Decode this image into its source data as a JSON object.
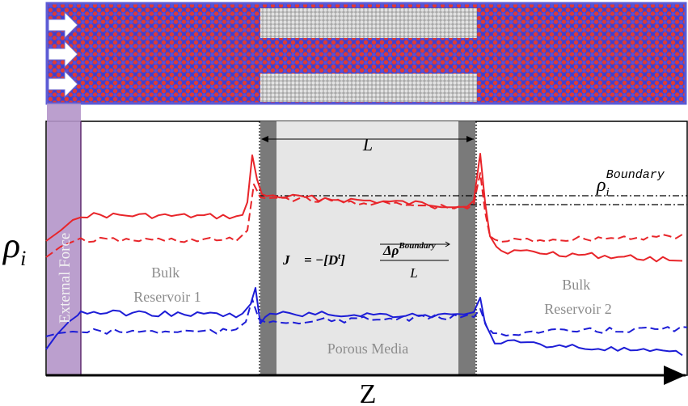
{
  "colors": {
    "red": "#e8252a",
    "blue": "#1d1dd6",
    "simulation_border": "#5b5bd6",
    "external_force_band": "#b495c9",
    "porous_fill": "#e6e6e6",
    "porous_wall": "#7a7a7a",
    "text_gray": "#8c8c8c"
  },
  "icons": {
    "flow_arrow": "white-right-arrow-icon",
    "span_arrow": "double-headed-arrow-icon",
    "axis_arrow": "right-arrow-icon"
  },
  "simulation_snapshot": {
    "flow_arrow_count": 3,
    "particle_species": [
      "red",
      "blue"
    ],
    "porous_slab_count": 2
  },
  "labels": {
    "y_axis": "ρ",
    "y_axis_sub": "i",
    "x_axis": "Z",
    "external_force": "External Force",
    "bulk_reservoir_1_line1": "Bulk",
    "bulk_reservoir_1_line2": "Reservoir 1",
    "bulk_reservoir_2_line1": "Bulk",
    "bulk_reservoir_2_line2": "Reservoir 2",
    "porous_media": "Porous Media",
    "length": "L",
    "boundary_rho": "ρ",
    "boundary_rho_sub": "i",
    "boundary_rho_sup": "Boundary",
    "flux_lhs": "J⃗ = −[",
    "flux_D": "D",
    "flux_D_sup": "t",
    "flux_rbracket": "]",
    "flux_num": "Δρ",
    "flux_num_sup": "Boundary",
    "flux_den": "L"
  },
  "chart_data": {
    "type": "line",
    "x_regions": [
      "External Force",
      "Bulk Reservoir 1",
      "Porous Media",
      "Bulk Reservoir 2"
    ],
    "series": [
      {
        "color": "red",
        "style": "solid",
        "profile": "upper"
      },
      {
        "color": "red",
        "style": "dashed",
        "profile": "lower"
      },
      {
        "color": "blue",
        "style": "solid",
        "profile": "upper"
      },
      {
        "color": "blue",
        "style": "dashed",
        "profile": "lower"
      }
    ]
  }
}
